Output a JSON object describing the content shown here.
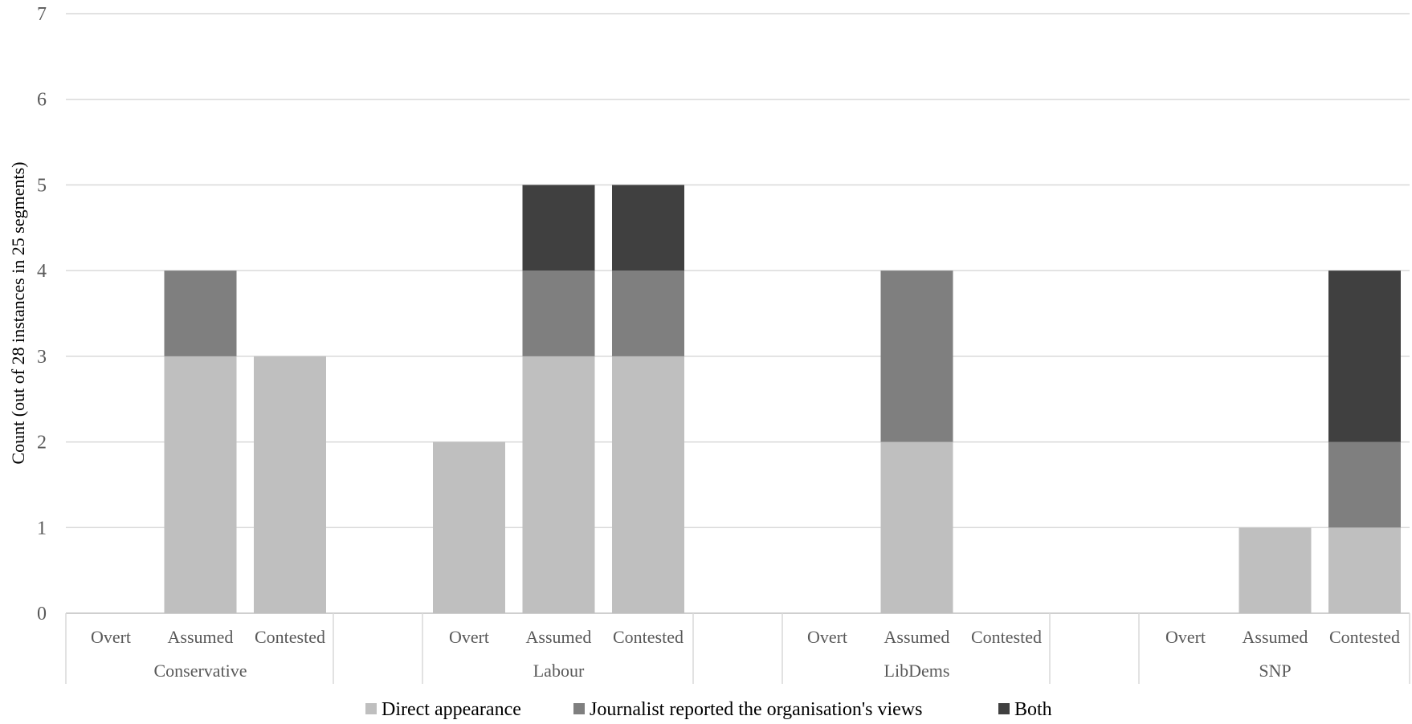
{
  "chart_data": {
    "type": "bar",
    "stacked": true,
    "ylabel": "Count (out of 28 instances in 25 segments)",
    "ylim": [
      0,
      7
    ],
    "yticks": [
      0,
      1,
      2,
      3,
      4,
      5,
      6,
      7
    ],
    "grid": true,
    "legend_position": "bottom",
    "groups": [
      "Conservative",
      "Labour",
      "LibDems",
      "SNP"
    ],
    "subcategories": [
      "Overt",
      "Assumed",
      "Contested"
    ],
    "series": [
      {
        "name": "Direct appearance",
        "color": "#bfbfbf",
        "values": [
          [
            0,
            3,
            3
          ],
          [
            2,
            3,
            3
          ],
          [
            0,
            2,
            0
          ],
          [
            0,
            1,
            1
          ]
        ]
      },
      {
        "name": "Journalist reported the organisation's views",
        "color": "#7f7f7f",
        "values": [
          [
            0,
            1,
            0
          ],
          [
            0,
            1,
            1
          ],
          [
            0,
            2,
            0
          ],
          [
            0,
            0,
            1
          ]
        ]
      },
      {
        "name": "Both",
        "color": "#404040",
        "values": [
          [
            0,
            0,
            0
          ],
          [
            0,
            1,
            1
          ],
          [
            0,
            0,
            0
          ],
          [
            0,
            0,
            2
          ]
        ]
      }
    ]
  }
}
